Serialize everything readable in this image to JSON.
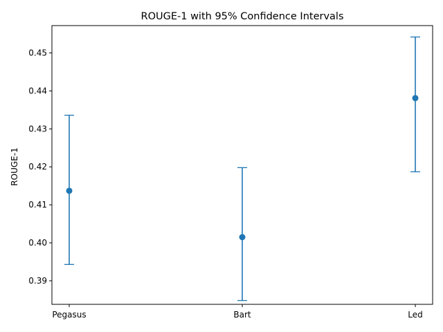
{
  "chart_data": {
    "type": "scatter",
    "title": "ROUGE-1 with 95% Confidence Intervals",
    "xlabel": "",
    "ylabel": "ROUGE-1",
    "categories": [
      "Pegasus",
      "Bart",
      "Led"
    ],
    "values": [
      0.4137,
      0.4015,
      0.4381
    ],
    "ci_lower": [
      0.3943,
      0.3848,
      0.4187
    ],
    "ci_upper": [
      0.4336,
      0.4198,
      0.4542
    ],
    "ylim": [
      0.3838,
      0.4572
    ],
    "yticks": [
      0.39,
      0.4,
      0.41,
      0.42,
      0.43,
      0.44,
      0.45
    ],
    "ytick_labels": [
      "0.39",
      "0.40",
      "0.41",
      "0.42",
      "0.43",
      "0.44",
      "0.45"
    ],
    "grid": false,
    "legend": "none",
    "color": "#1f77b4"
  }
}
